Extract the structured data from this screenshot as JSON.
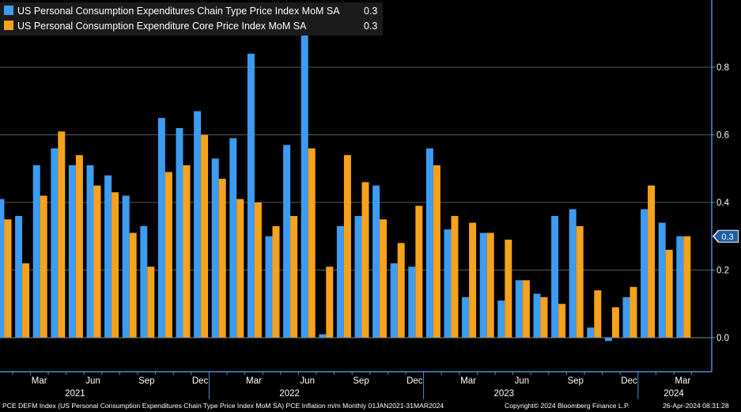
{
  "legend": {
    "series1_label": "US Personal Consumption Expenditures Chain Type Price Index MoM SA",
    "series1_value": "0.3",
    "series2_label": "US Personal Consumption Expenditure Core Price Index MoM SA",
    "series2_value": "0.3"
  },
  "footer": {
    "description": "PCE DEFM Index (US Personal Consumption Expenditures Chain Type Price Index MoM SA) PCE Inflation m/m  Monthly 01JAN2021-31MAR2024",
    "copyright": "Copyright© 2024 Bloomberg Finance L.P.",
    "timestamp": "26-Apr-2024 08:31:28"
  },
  "colors": {
    "series1": "#3d9cf0",
    "series2": "#f7a21b",
    "background": "#000000",
    "grid": "#5a5a5a",
    "axis": "#4a90d9"
  },
  "chart_data": {
    "type": "bar",
    "categories": [
      "Jan 2021",
      "Feb 2021",
      "Mar 2021",
      "Apr 2021",
      "May 2021",
      "Jun 2021",
      "Jul 2021",
      "Aug 2021",
      "Sep 2021",
      "Oct 2021",
      "Nov 2021",
      "Dec 2021",
      "Jan 2022",
      "Feb 2022",
      "Mar 2022",
      "Apr 2022",
      "May 2022",
      "Jun 2022",
      "Jul 2022",
      "Aug 2022",
      "Sep 2022",
      "Oct 2022",
      "Nov 2022",
      "Dec 2022",
      "Jan 2023",
      "Feb 2023",
      "Mar 2023",
      "Apr 2023",
      "May 2023",
      "Jun 2023",
      "Jul 2023",
      "Aug 2023",
      "Sep 2023",
      "Oct 2023",
      "Nov 2023",
      "Dec 2023",
      "Jan 2024",
      "Feb 2024",
      "Mar 2024"
    ],
    "series": [
      {
        "name": "US Personal Consumption Expenditures Chain Type Price Index MoM SA",
        "values": [
          0.41,
          0.36,
          0.51,
          0.56,
          0.51,
          0.51,
          0.48,
          0.42,
          0.33,
          0.65,
          0.62,
          0.67,
          0.53,
          0.59,
          0.84,
          0.3,
          0.57,
          0.9,
          0.01,
          0.33,
          0.36,
          0.45,
          0.22,
          0.21,
          0.56,
          0.32,
          0.12,
          0.31,
          0.11,
          0.17,
          0.13,
          0.36,
          0.38,
          0.03,
          -0.01,
          0.12,
          0.38,
          0.34,
          0.3
        ]
      },
      {
        "name": "US Personal Consumption Expenditure Core Price Index MoM SA",
        "values": [
          0.35,
          0.22,
          0.42,
          0.61,
          0.54,
          0.45,
          0.43,
          0.31,
          0.21,
          0.49,
          0.51,
          0.6,
          0.47,
          0.41,
          0.4,
          0.33,
          0.36,
          0.56,
          0.21,
          0.54,
          0.46,
          0.35,
          0.28,
          0.39,
          0.51,
          0.36,
          0.34,
          0.31,
          0.29,
          0.17,
          0.12,
          0.1,
          0.33,
          0.14,
          0.09,
          0.15,
          0.45,
          0.26,
          0.3
        ]
      }
    ],
    "y_ticks": [
      "0.0",
      "0.2",
      "0.4",
      "0.6",
      "0.8"
    ],
    "ylim": [
      -0.1,
      1.0
    ],
    "x_tick_labels": [
      "Mar",
      "Jun",
      "Sep",
      "Dec",
      "Mar",
      "Jun",
      "Sep",
      "Dec",
      "Mar",
      "Jun",
      "Sep",
      "Dec",
      "Mar"
    ],
    "x_tick_months": [
      2,
      5,
      8,
      11,
      14,
      17,
      20,
      23,
      26,
      29,
      32,
      35,
      38
    ],
    "year_labels": [
      "2021",
      "2022",
      "2023",
      "2024"
    ],
    "year_label_months": [
      4,
      16,
      28,
      37.5
    ],
    "last_value_label": "0.3",
    "grid": true,
    "legend_position": "top-left"
  }
}
